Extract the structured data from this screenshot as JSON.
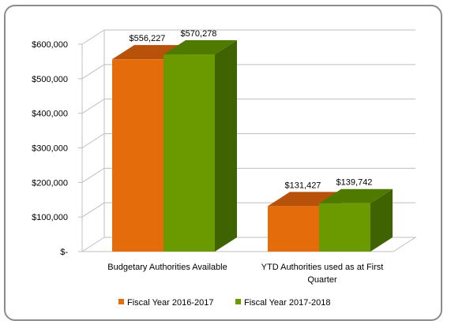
{
  "chart_data": {
    "type": "bar",
    "three_d": true,
    "categories": [
      "Budgetary Authorities Available",
      "YTD Authorities used as at First Quarter"
    ],
    "category_label_lines": [
      [
        "Budgetary Authorities Available"
      ],
      [
        "YTD Authorities used as at First",
        "Quarter"
      ]
    ],
    "series": [
      {
        "name": "Fiscal Year 2016-2017",
        "values": [
          556227,
          131427
        ],
        "data_labels": [
          "$556,227",
          "$131,427"
        ],
        "color": "#e46c0a",
        "top_color": "#b8520a",
        "side_color": "#a04a0a"
      },
      {
        "name": "Fiscal Year 2017-2018",
        "values": [
          570278,
          139742
        ],
        "data_labels": [
          "$570,278",
          "$139,742"
        ],
        "color": "#6a9a00",
        "top_color": "#4e7a00",
        "side_color": "#3e6300"
      }
    ],
    "y_ticks": [
      0,
      100000,
      200000,
      300000,
      400000,
      500000,
      600000
    ],
    "y_tick_labels": [
      "$-",
      "$100,000",
      "$200,000",
      "$300,000",
      "$400,000",
      "$500,000",
      "$600,000"
    ],
    "ylim": [
      0,
      600000
    ],
    "grid": true,
    "legend_position": "bottom",
    "title": "",
    "xlabel": "",
    "ylabel": ""
  }
}
